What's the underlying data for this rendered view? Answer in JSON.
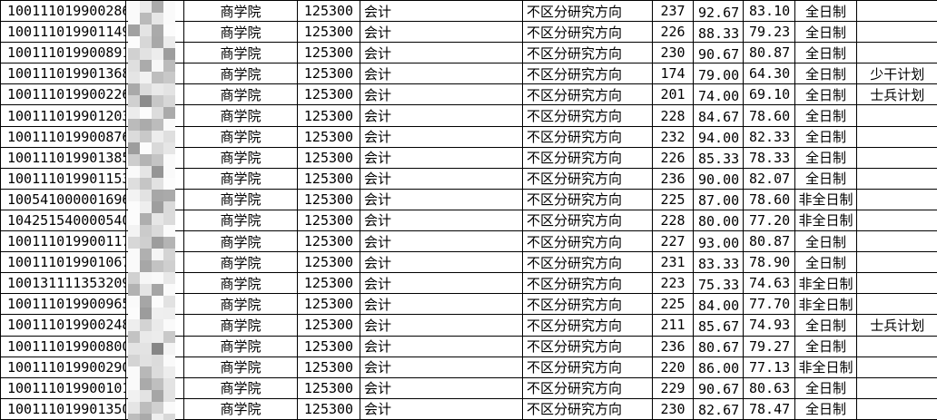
{
  "table": {
    "rows": [
      {
        "id": "100111019900286",
        "college": "商学院",
        "code": "125300",
        "major": "会计",
        "direction": "不区分研究方向",
        "total": "237",
        "score_a": "92.67",
        "score_b": "83.10",
        "mode": "全日制",
        "plan": ""
      },
      {
        "id": "100111019901149",
        "college": "商学院",
        "code": "125300",
        "major": "会计",
        "direction": "不区分研究方向",
        "total": "226",
        "score_a": "88.33",
        "score_b": "79.23",
        "mode": "全日制",
        "plan": ""
      },
      {
        "id": "100111019900891",
        "college": "商学院",
        "code": "125300",
        "major": "会计",
        "direction": "不区分研究方向",
        "total": "230",
        "score_a": "90.67",
        "score_b": "80.87",
        "mode": "全日制",
        "plan": ""
      },
      {
        "id": "100111019901368",
        "college": "商学院",
        "code": "125300",
        "major": "会计",
        "direction": "不区分研究方向",
        "total": "174",
        "score_a": "79.00",
        "score_b": "64.30",
        "mode": "全日制",
        "plan": "少干计划"
      },
      {
        "id": "100111019900226",
        "college": "商学院",
        "code": "125300",
        "major": "会计",
        "direction": "不区分研究方向",
        "total": "201",
        "score_a": "74.00",
        "score_b": "69.10",
        "mode": "全日制",
        "plan": "士兵计划"
      },
      {
        "id": "100111019901203",
        "college": "商学院",
        "code": "125300",
        "major": "会计",
        "direction": "不区分研究方向",
        "total": "228",
        "score_a": "84.67",
        "score_b": "78.60",
        "mode": "全日制",
        "plan": ""
      },
      {
        "id": "100111019900876",
        "college": "商学院",
        "code": "125300",
        "major": "会计",
        "direction": "不区分研究方向",
        "total": "232",
        "score_a": "94.00",
        "score_b": "82.33",
        "mode": "全日制",
        "plan": ""
      },
      {
        "id": "100111019901385",
        "college": "商学院",
        "code": "125300",
        "major": "会计",
        "direction": "不区分研究方向",
        "total": "226",
        "score_a": "85.33",
        "score_b": "78.33",
        "mode": "全日制",
        "plan": ""
      },
      {
        "id": "100111019901153",
        "college": "商学院",
        "code": "125300",
        "major": "会计",
        "direction": "不区分研究方向",
        "total": "236",
        "score_a": "90.00",
        "score_b": "82.07",
        "mode": "全日制",
        "plan": ""
      },
      {
        "id": "100541000001696",
        "college": "商学院",
        "code": "125300",
        "major": "会计",
        "direction": "不区分研究方向",
        "total": "225",
        "score_a": "87.00",
        "score_b": "78.60",
        "mode": "非全日制",
        "plan": ""
      },
      {
        "id": "104251540000540",
        "college": "商学院",
        "code": "125300",
        "major": "会计",
        "direction": "不区分研究方向",
        "total": "228",
        "score_a": "80.00",
        "score_b": "77.20",
        "mode": "非全日制",
        "plan": ""
      },
      {
        "id": "100111019900117",
        "college": "商学院",
        "code": "125300",
        "major": "会计",
        "direction": "不区分研究方向",
        "total": "227",
        "score_a": "93.00",
        "score_b": "80.87",
        "mode": "全日制",
        "plan": ""
      },
      {
        "id": "100111019901067",
        "college": "商学院",
        "code": "125300",
        "major": "会计",
        "direction": "不区分研究方向",
        "total": "231",
        "score_a": "83.33",
        "score_b": "78.90",
        "mode": "全日制",
        "plan": ""
      },
      {
        "id": "100131111353209",
        "college": "商学院",
        "code": "125300",
        "major": "会计",
        "direction": "不区分研究方向",
        "total": "223",
        "score_a": "75.33",
        "score_b": "74.63",
        "mode": "非全日制",
        "plan": ""
      },
      {
        "id": "100111019900965",
        "college": "商学院",
        "code": "125300",
        "major": "会计",
        "direction": "不区分研究方向",
        "total": "225",
        "score_a": "84.00",
        "score_b": "77.70",
        "mode": "非全日制",
        "plan": ""
      },
      {
        "id": "100111019900248",
        "college": "商学院",
        "code": "125300",
        "major": "会计",
        "direction": "不区分研究方向",
        "total": "211",
        "score_a": "85.67",
        "score_b": "74.93",
        "mode": "全日制",
        "plan": "士兵计划"
      },
      {
        "id": "100111019900800",
        "college": "商学院",
        "code": "125300",
        "major": "会计",
        "direction": "不区分研究方向",
        "total": "236",
        "score_a": "80.67",
        "score_b": "79.27",
        "mode": "全日制",
        "plan": ""
      },
      {
        "id": "100111019900290",
        "college": "商学院",
        "code": "125300",
        "major": "会计",
        "direction": "不区分研究方向",
        "total": "220",
        "score_a": "86.00",
        "score_b": "77.13",
        "mode": "非全日制",
        "plan": ""
      },
      {
        "id": "100111019900101",
        "college": "商学院",
        "code": "125300",
        "major": "会计",
        "direction": "不区分研究方向",
        "total": "229",
        "score_a": "90.67",
        "score_b": "80.63",
        "mode": "全日制",
        "plan": ""
      },
      {
        "id": "100111019901350",
        "college": "商学院",
        "code": "125300",
        "major": "会计",
        "direction": "不区分研究方向",
        "total": "230",
        "score_a": "82.67",
        "score_b": "78.47",
        "mode": "全日制",
        "plan": ""
      }
    ]
  },
  "redaction": {
    "column": "name",
    "style": "pixel-mosaic"
  },
  "colors": {
    "background": "#ffffff",
    "border": "#000000",
    "text": "#000000",
    "redaction_grey": "#c9c9c9"
  }
}
